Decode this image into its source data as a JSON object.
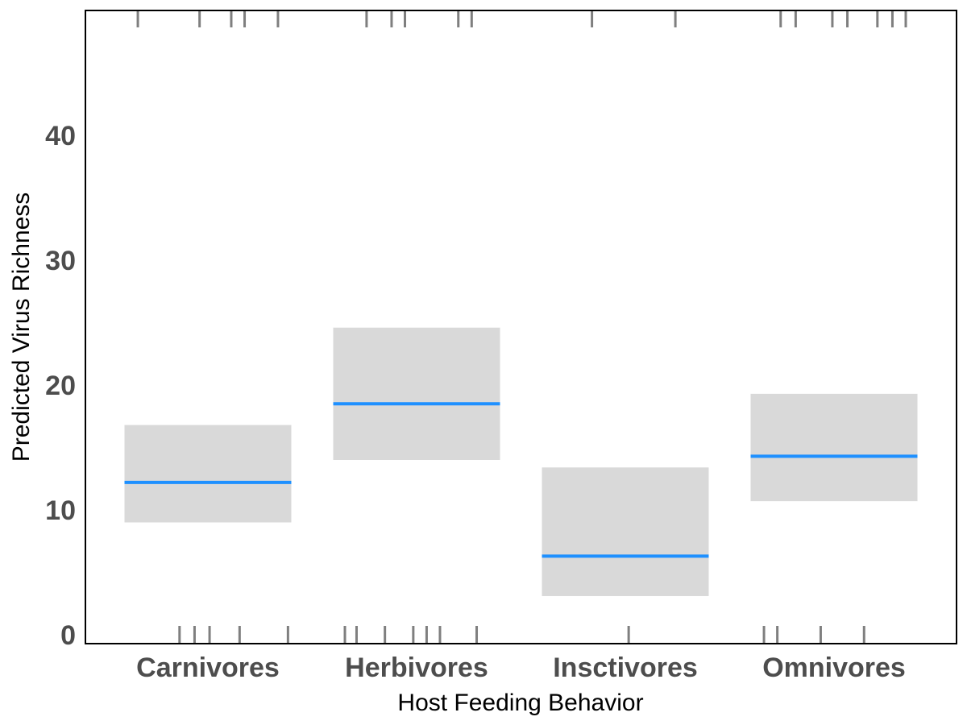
{
  "chart_data": {
    "type": "crossbar",
    "xlabel": "Host Feeding Behavior",
    "ylabel": "Predicted Virus Richness",
    "ylim": [
      0,
      50
    ],
    "yticks": [
      0,
      10,
      20,
      30,
      40
    ],
    "grid": false,
    "categories": [
      "Carnivores",
      "Herbivores",
      "Insctivores",
      "Omnivores"
    ],
    "fit": [
      12.2,
      18.5,
      6.3,
      14.3
    ],
    "lower": [
      9.0,
      14.0,
      3.1,
      10.7
    ],
    "upper": [
      16.8,
      24.6,
      13.4,
      19.3
    ],
    "rug_bottom": [
      [
        0.33,
        0.42,
        0.51,
        0.69,
        0.98
      ],
      [
        0.07,
        0.14,
        0.31,
        0.48,
        0.56,
        0.64,
        0.86
      ],
      [
        0.52
      ],
      [
        0.08,
        0.16,
        0.42,
        0.68
      ]
    ],
    "rug_top": [
      [
        0.08,
        0.45,
        0.64,
        0.72,
        0.92
      ],
      [
        0.2,
        0.35,
        0.43,
        0.75,
        0.83
      ],
      [
        0.3,
        0.8
      ],
      [
        0.18,
        0.27,
        0.49,
        0.58,
        0.76,
        0.85,
        0.93
      ]
    ],
    "colors": {
      "fit_line": "#1E90FF",
      "band": "#D9D9D9",
      "rug": "#7F7F7F",
      "axis": "#000000",
      "tick_text": "#4D4D4D"
    }
  }
}
